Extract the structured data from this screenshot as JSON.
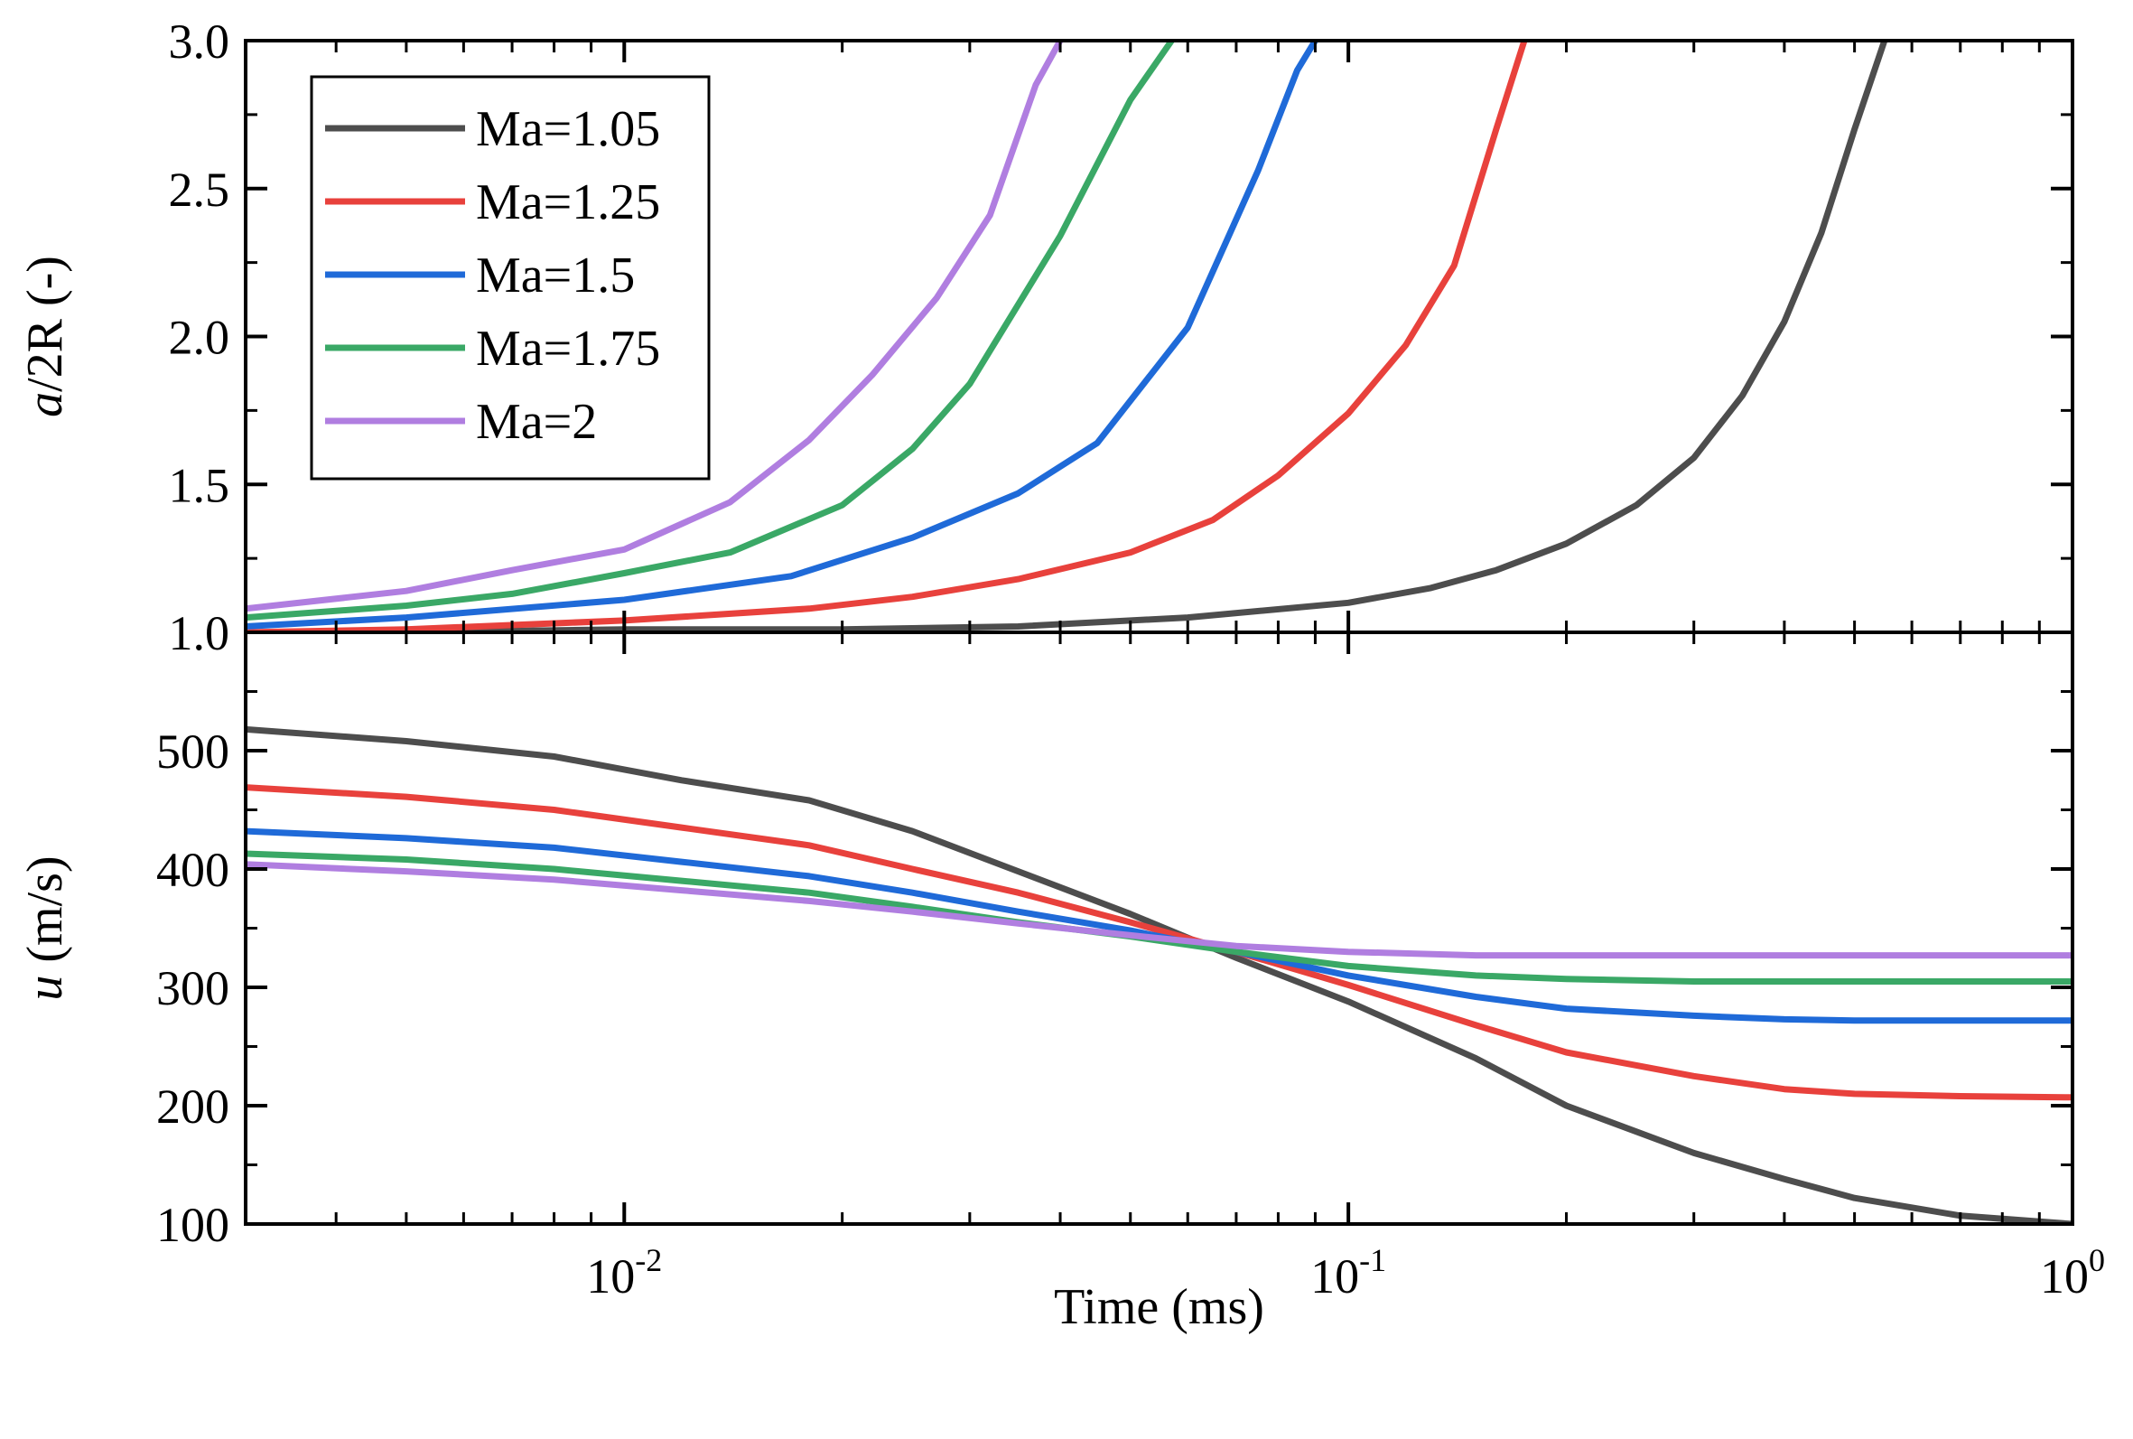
{
  "chart_data": [
    {
      "type": "line",
      "panel": "top",
      "ylabel_var": "a",
      "ylabel_rest": "/2R (-)",
      "xscale": "log",
      "xlim": [
        0.003,
        1
      ],
      "ylim": [
        1.0,
        3.0
      ],
      "yticks": [
        1.0,
        1.5,
        2.0,
        2.5,
        3.0
      ],
      "ytick_labels": [
        "1.0",
        "1.5",
        "2.0",
        "2.5",
        "3.0"
      ],
      "legend": {
        "placement": "top-left"
      },
      "series": [
        {
          "name": "Ma=1.05",
          "color": "#4d4d4d",
          "x": [
            0.003,
            0.005,
            0.01,
            0.02,
            0.035,
            0.06,
            0.1,
            0.13,
            0.16,
            0.2,
            0.25,
            0.3,
            0.35,
            0.4,
            0.45,
            0.5,
            0.55
          ],
          "y": [
            1.0,
            1.0,
            1.01,
            1.01,
            1.02,
            1.05,
            1.1,
            1.15,
            1.21,
            1.3,
            1.43,
            1.59,
            1.8,
            2.05,
            2.35,
            2.7,
            3.0
          ]
        },
        {
          "name": "Ma=1.25",
          "color": "#e8413c",
          "x": [
            0.003,
            0.005,
            0.01,
            0.018,
            0.025,
            0.035,
            0.05,
            0.065,
            0.08,
            0.1,
            0.12,
            0.14,
            0.16,
            0.175
          ],
          "y": [
            1.0,
            1.01,
            1.04,
            1.08,
            1.12,
            1.18,
            1.27,
            1.38,
            1.53,
            1.74,
            1.97,
            2.24,
            2.7,
            3.0
          ]
        },
        {
          "name": "Ma=1.5",
          "color": "#1f6ad8",
          "x": [
            0.003,
            0.005,
            0.01,
            0.017,
            0.025,
            0.035,
            0.045,
            0.06,
            0.075,
            0.085,
            0.09
          ],
          "y": [
            1.02,
            1.05,
            1.11,
            1.19,
            1.32,
            1.47,
            1.64,
            2.03,
            2.56,
            2.9,
            3.0
          ]
        },
        {
          "name": "Ma=1.75",
          "color": "#3aa866",
          "x": [
            0.003,
            0.005,
            0.007,
            0.01,
            0.014,
            0.02,
            0.025,
            0.03,
            0.04,
            0.05,
            0.057
          ],
          "y": [
            1.05,
            1.09,
            1.13,
            1.2,
            1.27,
            1.43,
            1.62,
            1.84,
            2.34,
            2.8,
            3.0
          ]
        },
        {
          "name": "Ma=2",
          "color": "#b07ee0",
          "x": [
            0.003,
            0.005,
            0.007,
            0.01,
            0.014,
            0.018,
            0.022,
            0.027,
            0.032,
            0.037,
            0.04
          ],
          "y": [
            1.08,
            1.14,
            1.21,
            1.28,
            1.44,
            1.65,
            1.87,
            2.13,
            2.41,
            2.85,
            3.0
          ]
        }
      ]
    },
    {
      "type": "line",
      "panel": "bottom",
      "ylabel_var": "u",
      "ylabel_rest": " (m/s)",
      "xlabel": "Time (ms)",
      "xscale": "log",
      "xlim": [
        0.003,
        1
      ],
      "ylim": [
        100,
        600
      ],
      "yticks": [
        100,
        200,
        300,
        400,
        500
      ],
      "ytick_labels": [
        "100",
        "200",
        "300",
        "400",
        "500"
      ],
      "xtick_base": "10",
      "xtick_exponents": [
        "-2",
        "-1",
        "0"
      ],
      "series": [
        {
          "name": "Ma=1.05",
          "color": "#4d4d4d",
          "x": [
            0.003,
            0.005,
            0.008,
            0.012,
            0.018,
            0.025,
            0.035,
            0.05,
            0.07,
            0.1,
            0.15,
            0.2,
            0.3,
            0.4,
            0.5,
            0.7,
            1.0
          ],
          "y": [
            518,
            508,
            495,
            475,
            458,
            432,
            398,
            362,
            325,
            288,
            240,
            200,
            160,
            138,
            122,
            107,
            100
          ]
        },
        {
          "name": "Ma=1.25",
          "color": "#e8413c",
          "x": [
            0.003,
            0.005,
            0.008,
            0.012,
            0.018,
            0.025,
            0.035,
            0.05,
            0.07,
            0.1,
            0.15,
            0.2,
            0.3,
            0.4,
            0.5,
            0.7,
            1.0
          ],
          "y": [
            469,
            461,
            450,
            435,
            420,
            400,
            380,
            355,
            330,
            302,
            268,
            245,
            225,
            214,
            210,
            208,
            207
          ]
        },
        {
          "name": "Ma=1.5",
          "color": "#1f6ad8",
          "x": [
            0.003,
            0.005,
            0.008,
            0.012,
            0.018,
            0.025,
            0.035,
            0.05,
            0.07,
            0.1,
            0.15,
            0.2,
            0.3,
            0.4,
            0.5,
            0.7,
            1.0
          ],
          "y": [
            432,
            426,
            418,
            406,
            394,
            380,
            364,
            348,
            330,
            310,
            292,
            282,
            276,
            273,
            272,
            272,
            272
          ]
        },
        {
          "name": "Ma=1.75",
          "color": "#3aa866",
          "x": [
            0.003,
            0.005,
            0.008,
            0.012,
            0.018,
            0.025,
            0.035,
            0.05,
            0.07,
            0.1,
            0.15,
            0.2,
            0.3,
            0.4,
            0.5,
            0.7,
            1.0
          ],
          "y": [
            413,
            408,
            400,
            390,
            380,
            368,
            355,
            343,
            330,
            318,
            310,
            307,
            305,
            305,
            305,
            305,
            305
          ]
        },
        {
          "name": "Ma=2",
          "color": "#b07ee0",
          "x": [
            0.003,
            0.005,
            0.008,
            0.012,
            0.018,
            0.025,
            0.035,
            0.05,
            0.07,
            0.1,
            0.15,
            0.2,
            0.3,
            0.4,
            0.5,
            0.7,
            1.0
          ],
          "y": [
            404,
            398,
            391,
            382,
            373,
            364,
            354,
            344,
            335,
            330,
            327,
            327,
            327,
            327,
            327,
            327,
            327
          ]
        }
      ]
    }
  ]
}
